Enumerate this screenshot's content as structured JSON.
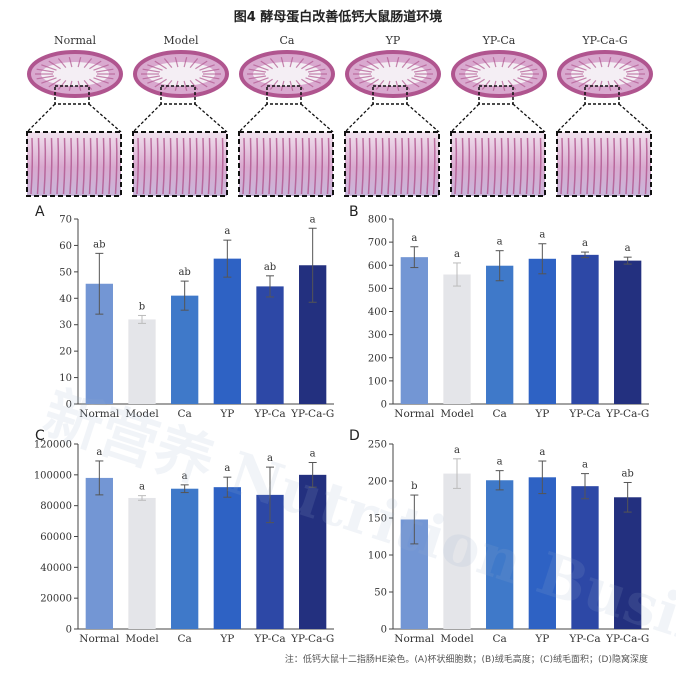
{
  "figure": {
    "title": "图4 酵母蛋白改善低钙大鼠肠道环境",
    "groups": [
      "Normal",
      "Model",
      "Ca",
      "YP",
      "YP-Ca",
      "YP-Ca-G"
    ],
    "note": "注：低钙大鼠十二指肠HE染色。(A)杯状细胞数；(B)绒毛高度；(C)绒毛面积；(D)隐窝深度",
    "watermark": "新营养 Nutrition Business",
    "colors": {
      "Normal": "#7396d4",
      "Model": "#e4e5e9",
      "Ca": "#3f79c9",
      "YP": "#2e62c4",
      "YP-Ca": "#2d48a6",
      "YP-Ca-G": "#23307f",
      "tissue_light": "#d9a9cf",
      "tissue_dark": "#b0558f"
    }
  },
  "chart_data": [
    {
      "panel": "A",
      "type": "bar",
      "categories": [
        "Normal",
        "Model",
        "Ca",
        "YP",
        "YP-Ca",
        "YP-Ca-G"
      ],
      "values": [
        45.5,
        32,
        41,
        55,
        44.5,
        52.5
      ],
      "errors": [
        11.5,
        1.5,
        5.5,
        7,
        4,
        14
      ],
      "letters": [
        "ab",
        "b",
        "ab",
        "a",
        "ab",
        "a"
      ],
      "ylim": [
        0,
        70
      ],
      "yticks": [
        0,
        10,
        20,
        30,
        40,
        50,
        60,
        70
      ],
      "title": "",
      "xlabel": "",
      "ylabel": ""
    },
    {
      "panel": "B",
      "type": "bar",
      "categories": [
        "Normal",
        "Model",
        "Ca",
        "YP",
        "YP-Ca",
        "YP-Ca-G"
      ],
      "values": [
        635,
        560,
        598,
        628,
        645,
        620
      ],
      "errors": [
        45,
        50,
        65,
        65,
        12,
        15
      ],
      "letters": [
        "a",
        "a",
        "a",
        "a",
        "a",
        "a"
      ],
      "ylim": [
        0,
        800
      ],
      "yticks": [
        0,
        100,
        200,
        300,
        400,
        500,
        600,
        700,
        800
      ],
      "title": "",
      "xlabel": "",
      "ylabel": ""
    },
    {
      "panel": "C",
      "type": "bar",
      "categories": [
        "Normal",
        "Model",
        "Ca",
        "YP",
        "YP-Ca",
        "YP-Ca-G"
      ],
      "values": [
        98000,
        85000,
        91000,
        92000,
        87000,
        100000
      ],
      "errors": [
        11000,
        1500,
        2500,
        6500,
        18000,
        8000
      ],
      "letters": [
        "a",
        "a",
        "a",
        "a",
        "a",
        "a"
      ],
      "ylim": [
        0,
        120000
      ],
      "yticks": [
        0,
        20000,
        40000,
        60000,
        80000,
        100000,
        120000
      ],
      "title": "",
      "xlabel": "",
      "ylabel": ""
    },
    {
      "panel": "D",
      "type": "bar",
      "categories": [
        "Normal",
        "Model",
        "Ca",
        "YP",
        "YP-Ca",
        "YP-Ca-G"
      ],
      "values": [
        148,
        210,
        201,
        205,
        193,
        178
      ],
      "errors": [
        33,
        20,
        13,
        22,
        17,
        20
      ],
      "letters": [
        "b",
        "a",
        "a",
        "a",
        "a",
        "ab"
      ],
      "ylim": [
        0,
        250
      ],
      "yticks": [
        0,
        50,
        100,
        150,
        200,
        250
      ],
      "title": "",
      "xlabel": "",
      "ylabel": ""
    }
  ]
}
